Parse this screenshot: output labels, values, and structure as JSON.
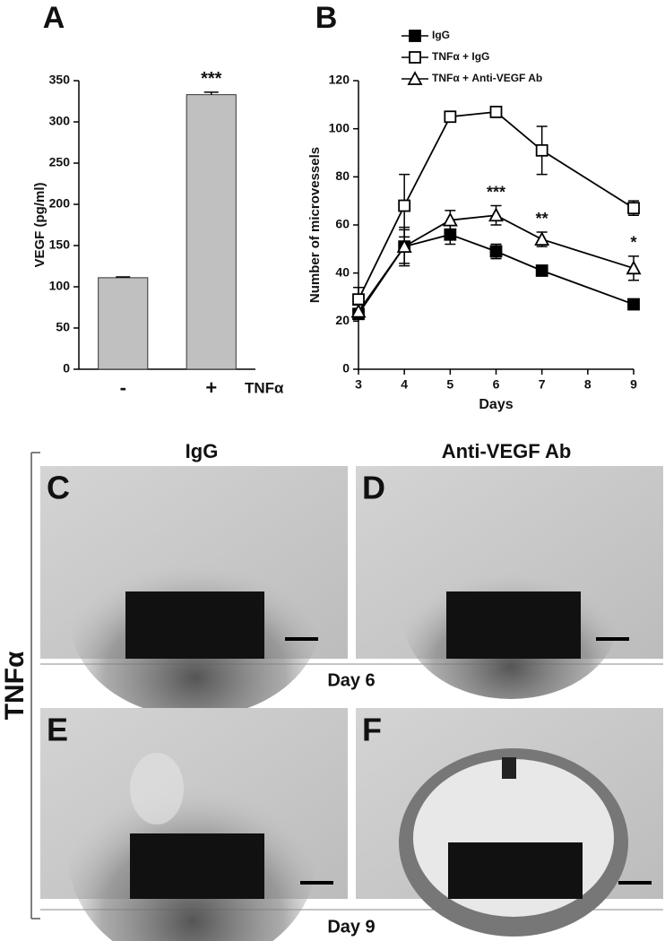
{
  "chart_data": [
    {
      "type": "bar",
      "label": "A",
      "ylabel": "VEGF (pg/ml)",
      "xlabel": "TNFα",
      "categories": [
        "-",
        "+"
      ],
      "values": [
        111,
        333
      ],
      "errors": [
        1,
        3
      ],
      "color": "#c0c0c0",
      "bar_annotations": [
        null,
        "***"
      ],
      "ylim": [
        0,
        350
      ],
      "yticks": [
        0,
        50,
        100,
        150,
        200,
        250,
        300,
        350
      ]
    },
    {
      "type": "line",
      "label": "B",
      "ylabel": "Number of microvessels",
      "xlabel": "Days",
      "x": [
        3,
        4,
        5,
        6,
        7,
        9
      ],
      "xlim": [
        3,
        9
      ],
      "xticks": [
        3,
        4,
        5,
        6,
        7,
        8,
        9
      ],
      "ylim": [
        0,
        120
      ],
      "yticks": [
        0,
        20,
        40,
        60,
        80,
        100,
        120
      ],
      "series": [
        {
          "name": "IgG",
          "color": "#000000",
          "marker": "filled-square",
          "values": [
            23,
            51,
            56,
            49,
            41,
            27
          ],
          "errors": [
            2,
            8,
            4,
            3,
            1,
            1
          ]
        },
        {
          "name": "TNFα + IgG",
          "color": "#000000",
          "marker": "open-square",
          "values": [
            29,
            68,
            105,
            107,
            91,
            67
          ],
          "errors": [
            5,
            13,
            2,
            1,
            10,
            3
          ]
        },
        {
          "name": "TNFα + Anti-VEGF Ab",
          "color": "#000000",
          "marker": "open-triangle",
          "values": [
            24,
            51,
            62,
            64,
            54,
            42
          ],
          "errors": [
            3,
            7,
            4,
            4,
            3,
            5
          ],
          "annotations": [
            null,
            null,
            null,
            "***",
            "**",
            "*"
          ]
        }
      ]
    }
  ],
  "photos": {
    "columns": [
      "IgG",
      "Anti-VEGF Ab"
    ],
    "rows": [
      "Day 6",
      "Day 9"
    ],
    "treatment": "TNFα",
    "panels": [
      "C",
      "D",
      "E",
      "F"
    ]
  }
}
